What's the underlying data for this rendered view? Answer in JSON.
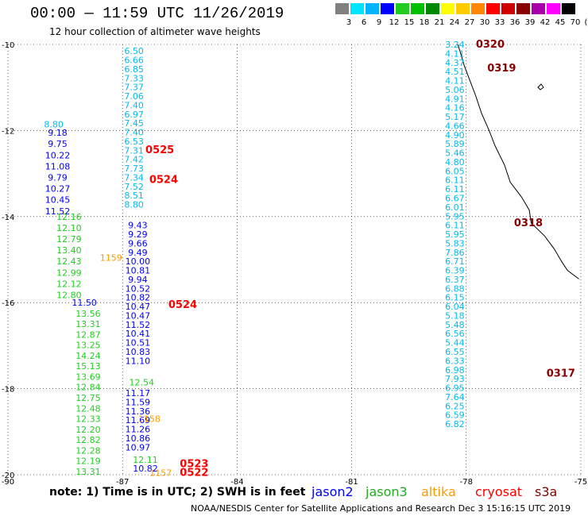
{
  "header": {
    "title": "00:00 — 11:59 UTC 11/26/2019",
    "subtitle": "12 hour collection of altimeter wave heights"
  },
  "colorscale": {
    "labels": [
      "3",
      "6",
      "9",
      "12",
      "15",
      "18",
      "21",
      "24",
      "27",
      "30",
      "33",
      "36",
      "39",
      "42",
      "45",
      "70",
      "(ft)"
    ],
    "colors": [
      "#808080",
      "#00e5ff",
      "#00b4ff",
      "#0000ff",
      "#22cc22",
      "#00c000",
      "#008800",
      "#ffff00",
      "#ffcc00",
      "#ff8800",
      "#ff0000",
      "#d00000",
      "#880000",
      "#aa00aa",
      "#ff00ff",
      "#000000"
    ]
  },
  "axes": {
    "lon_labels": [
      "-90",
      "-87",
      "-84",
      "-81",
      "-78",
      "-75"
    ],
    "lat_labels": [
      "-10",
      "-12",
      "-14",
      "-16",
      "-18",
      "-20"
    ]
  },
  "chart_data": {
    "type": "map",
    "lon_range": [
      -90,
      -75
    ],
    "lat_range": [
      -20,
      -10
    ],
    "grid": "dotted",
    "colors": {
      "jason2": "#0000ff",
      "jason3": "#22cc22",
      "altika": "#ff9900",
      "cryosat": "#ff0000",
      "s3a": "#880000",
      "cyan": "#00bbee"
    },
    "tracks": [
      {
        "color": "cyan",
        "x": -86.7,
        "values": [
          "6.50",
          "6.66",
          "6.85",
          "7.33",
          "7.37",
          "7.06",
          "7.40",
          "6.97",
          "7.45",
          "7.40",
          "6.53",
          "7.31",
          "7.42",
          "7.73",
          "7.34",
          "7.52",
          "8.51",
          "8.80"
        ],
        "lat_start": -10.15,
        "lat_step": 0.21
      },
      {
        "color": "jason2",
        "x": -86.6,
        "values": [
          "9.43",
          "9.29",
          "9.66",
          "9.49",
          "10.00",
          "10.81",
          "9.94",
          "10.52",
          "10.82",
          "10.47",
          "10.47",
          "11.52",
          "10.41",
          "10.51",
          "10.83",
          "11.10"
        ],
        "lat_start": -14.2,
        "lat_step": 0.21
      },
      {
        "color": "jason3",
        "x": -86.5,
        "values": [
          "12.54"
        ],
        "lat_start": -17.85,
        "lat_step": 0.21
      },
      {
        "color": "jason2",
        "x": -86.6,
        "values": [
          "11.17",
          "11.59",
          "11.36",
          "11.69",
          "11.26",
          "10.86",
          "10.97"
        ],
        "lat_start": -18.1,
        "lat_step": 0.21
      },
      {
        "color": "jason3",
        "x": -86.4,
        "values": [
          "12.11"
        ],
        "lat_start": -19.65,
        "lat_step": 0.21
      },
      {
        "color": "jason2",
        "x": -86.4,
        "values": [
          "10.82"
        ],
        "lat_start": -19.85,
        "lat_step": 0.21
      },
      {
        "color": "cyan",
        "x": -88.8,
        "values": [
          "8.80"
        ],
        "lat_start": -11.85,
        "lat_step": 0.21
      },
      {
        "color": "jason2",
        "x": -88.7,
        "values": [
          "9.18",
          "9.75",
          "10.22",
          "11.08",
          "9.79",
          "10.27",
          "10.45",
          "11.52"
        ],
        "lat_start": -12.05,
        "lat_step": 0.26
      },
      {
        "color": "jason3",
        "x": -88.4,
        "values": [
          "12.16",
          "12.10",
          "12.79",
          "13.40",
          "12.43",
          "12.99",
          "12.12",
          "12.80"
        ],
        "lat_start": -14.0,
        "lat_step": 0.26
      },
      {
        "color": "jason2",
        "x": -88.0,
        "values": [
          "11.50"
        ],
        "lat_start": -16.0,
        "lat_step": 0.26
      },
      {
        "color": "jason3",
        "x": -87.9,
        "values": [
          "13.56",
          "13.31",
          "12.87",
          "13.25",
          "14.24",
          "15.13",
          "13.69",
          "12.84",
          "12.75",
          "12.48",
          "12.33",
          "12.20",
          "12.82",
          "12.28",
          "12.19",
          "13.31"
        ],
        "lat_start": -16.25,
        "lat_step": 0.245
      },
      {
        "color": "altika",
        "x": -87.3,
        "values": [
          "1159"
        ],
        "lat_start": -14.95,
        "lat_step": 0.2
      },
      {
        "color": "altika",
        "x": -86.3,
        "values": [
          "1158"
        ],
        "lat_start": -18.7,
        "lat_step": 0.2
      },
      {
        "color": "altika",
        "x": -86.0,
        "values": [
          "1157"
        ],
        "lat_start": -19.95,
        "lat_step": 0.2
      },
      {
        "color": "cyan",
        "x": -78.3,
        "values": [
          "3.24",
          "4.11",
          "4.37",
          "4.51",
          "4.11",
          "5.06",
          "4.91",
          "4.16",
          "5.17",
          "4.66",
          "4.90",
          "5.89",
          "5.46",
          "4.80",
          "6.05",
          "6.11",
          "6.11",
          "6.67",
          "6.01",
          "5.95",
          "6.11",
          "5.95",
          "5.83",
          "7.86",
          "6.71",
          "6.39",
          "6.37",
          "6.88",
          "6.15",
          "6.04",
          "5.18",
          "5.48",
          "6.56",
          "5.44",
          "6.55",
          "6.33",
          "6.98",
          "7.93",
          "6.95",
          "7.64",
          "6.25",
          "6.59",
          "6.82"
        ],
        "lat_start": -10.0,
        "lat_step": 0.21
      }
    ],
    "annotations": [
      {
        "text": "0525",
        "color": "cryosat",
        "lon": -86.4,
        "lat": -12.45
      },
      {
        "text": "0524",
        "color": "cryosat",
        "lon": -86.3,
        "lat": -13.15
      },
      {
        "text": "0524",
        "color": "cryosat",
        "lon": -85.8,
        "lat": -16.05
      },
      {
        "text": "0523",
        "color": "cryosat",
        "lon": -85.5,
        "lat": -19.75
      },
      {
        "text": "0522",
        "color": "cryosat",
        "lon": -85.5,
        "lat": -19.95
      },
      {
        "text": "0320",
        "color": "s3a",
        "lon": -77.75,
        "lat": -10.0
      },
      {
        "text": "0319",
        "color": "s3a",
        "lon": -77.45,
        "lat": -10.55
      },
      {
        "text": "0318",
        "color": "s3a",
        "lon": -76.75,
        "lat": -14.15
      },
      {
        "text": "0317",
        "color": "s3a",
        "lon": -75.9,
        "lat": -17.65
      }
    ],
    "coastline": [
      [
        -78.22,
        -10.0
      ],
      [
        -78.15,
        -10.2
      ],
      [
        -78.05,
        -10.5
      ],
      [
        -77.9,
        -10.85
      ],
      [
        -77.75,
        -11.2
      ],
      [
        -77.6,
        -11.6
      ],
      [
        -77.4,
        -12.0
      ],
      [
        -77.25,
        -12.35
      ],
      [
        -77.0,
        -12.8
      ],
      [
        -76.85,
        -13.2
      ],
      [
        -76.55,
        -13.55
      ],
      [
        -76.35,
        -13.85
      ],
      [
        -76.3,
        -14.15
      ],
      [
        -75.95,
        -14.45
      ],
      [
        -75.7,
        -14.75
      ],
      [
        -75.5,
        -15.05
      ],
      [
        -75.35,
        -15.25
      ],
      [
        -75.05,
        -15.45
      ]
    ]
  },
  "footer": {
    "note": "note: 1) Time is in UTC; 2) SWH is in feet",
    "legend": [
      "jason2",
      "jason3",
      "altika",
      "cryosat",
      "s3a"
    ],
    "credit": "NOAA/NESDIS Center for Satellite Applications and Research    Dec  3 15:16:15 UTC 2019"
  }
}
